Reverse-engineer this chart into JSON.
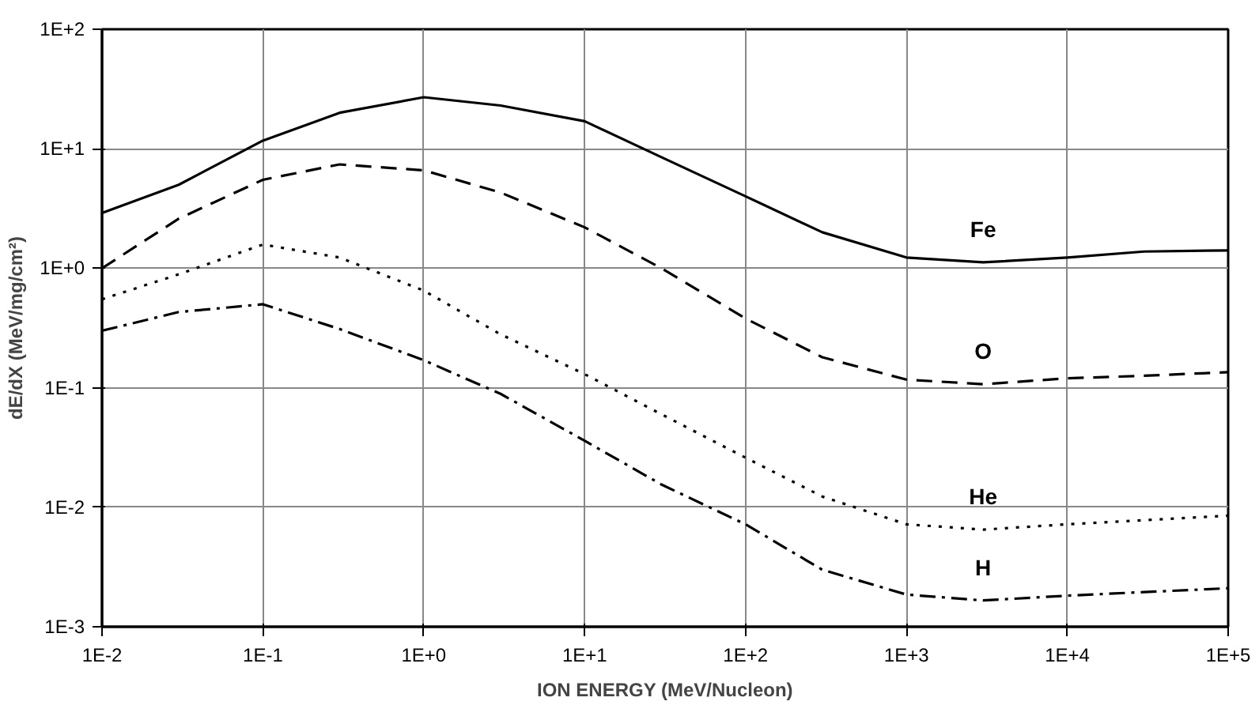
{
  "chart_data": {
    "type": "line",
    "xlabel": "ION ENERGY (MeV/Nucleon)",
    "ylabel": "dE/dX (MeV/mg/cm²)",
    "log": "xy",
    "grid": true,
    "x": [
      0.01,
      0.03,
      0.1,
      0.3,
      1,
      3,
      10,
      30,
      100,
      300,
      1000,
      3000,
      10000,
      30000,
      100000
    ],
    "xlim": [
      0.01,
      100000
    ],
    "ylim": [
      0.001,
      100
    ],
    "xticks": [
      {
        "value": 0.01,
        "label": "1E-2"
      },
      {
        "value": 0.1,
        "label": "1E-1"
      },
      {
        "value": 1,
        "label": "1E+0"
      },
      {
        "value": 10,
        "label": "1E+1"
      },
      {
        "value": 100,
        "label": "1E+2"
      },
      {
        "value": 1000,
        "label": "1E+3"
      },
      {
        "value": 10000,
        "label": "1E+4"
      },
      {
        "value": 100000,
        "label": "1E+5"
      }
    ],
    "yticks": [
      {
        "value": 0.001,
        "label": "1E-3"
      },
      {
        "value": 0.01,
        "label": "1E-2"
      },
      {
        "value": 0.1,
        "label": "1E-1"
      },
      {
        "value": 1,
        "label": "1E+0"
      },
      {
        "value": 10,
        "label": "1E+1"
      },
      {
        "value": 100,
        "label": "1E+2"
      }
    ],
    "series": [
      {
        "name": "Fe",
        "color": "#000000",
        "line_style": "solid",
        "values": [
          2.9,
          5.0,
          11.7,
          20,
          27,
          23,
          17,
          8.5,
          4.0,
          2.0,
          1.23,
          1.12,
          1.23,
          1.38,
          1.41
        ]
      },
      {
        "name": "O",
        "color": "#000000",
        "line_style": "dashed",
        "values": [
          1.0,
          2.6,
          5.5,
          7.4,
          6.6,
          4.3,
          2.2,
          1.0,
          0.38,
          0.18,
          0.117,
          0.107,
          0.12,
          0.126,
          0.135
        ]
      },
      {
        "name": "He",
        "color": "#000000",
        "line_style": "dotted",
        "values": [
          0.55,
          0.89,
          1.58,
          1.23,
          0.65,
          0.28,
          0.13,
          0.06,
          0.026,
          0.0123,
          0.0072,
          0.0065,
          0.0072,
          0.0078,
          0.0085
        ]
      },
      {
        "name": "H",
        "color": "#000000",
        "line_style": "dashdot",
        "values": [
          0.3,
          0.43,
          0.5,
          0.31,
          0.17,
          0.089,
          0.036,
          0.0155,
          0.0072,
          0.003,
          0.00186,
          0.00166,
          0.00182,
          0.00195,
          0.0021
        ]
      }
    ]
  }
}
